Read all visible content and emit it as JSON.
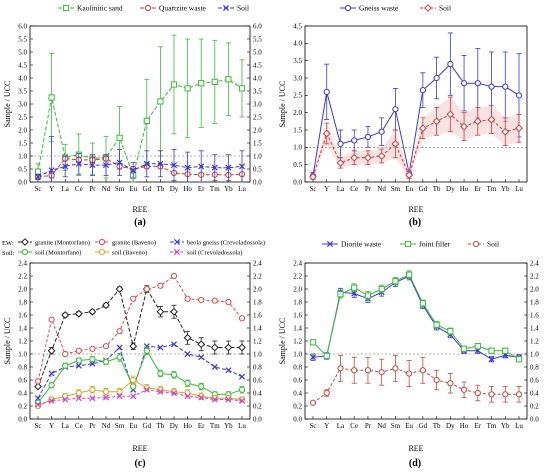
{
  "chart_data": [
    {
      "panel_label": "(a)",
      "type": "line",
      "xlabel": "REE",
      "ylabel": "Sample / UCC",
      "categories": [
        "Sc",
        "Y",
        "La",
        "Ce",
        "Pr",
        "Nd",
        "Sm",
        "Eu",
        "Gd",
        "Tb",
        "Dy",
        "Ho",
        "Er",
        "Tm",
        "Yb",
        "Lu"
      ],
      "ylim": [
        0,
        6
      ],
      "yticks": [
        0,
        0.5,
        1,
        1.5,
        2,
        2.5,
        3,
        3.5,
        4,
        4.5,
        5,
        5.5,
        6
      ],
      "ytick_labels": [
        "0.0",
        "0.5",
        "1.0",
        "1.5",
        "2.0",
        "2.5",
        "3.0",
        "3.5",
        "4.0",
        "4.5",
        "5.0",
        "5.5",
        "6.0"
      ],
      "right_axis": true,
      "reference_line": 1,
      "legend_position": "top",
      "series": [
        {
          "name": "Kaolinitic sand",
          "color": "#3cb93c",
          "marker": "square",
          "dash": "4,2",
          "values": [
            0.4,
            3.25,
            0.95,
            1.05,
            0.9,
            0.95,
            1.7,
            0.25,
            2.35,
            3.1,
            3.75,
            3.6,
            3.8,
            3.85,
            3.95,
            3.6
          ],
          "err": [
            0.3,
            1.7,
            0.5,
            0.8,
            0.6,
            0.8,
            1.2,
            0.3,
            1.6,
            2.1,
            1.9,
            1.9,
            1.7,
            1.6,
            1.4,
            1.1
          ]
        },
        {
          "name": "Quartzite waste",
          "color": "#cc3a3a",
          "marker": "circle",
          "dash": "4,2",
          "values": [
            0.2,
            0.25,
            0.9,
            0.85,
            0.85,
            0.9,
            0.6,
            0.5,
            0.6,
            0.6,
            0.35,
            0.3,
            0.28,
            0.28,
            0.27,
            0.3
          ],
          "err": [
            0.05,
            0.1,
            0.1,
            0.1,
            0.1,
            0.1,
            0.1,
            0.1,
            0.08,
            0.08,
            0.06,
            0.05,
            0.05,
            0.05,
            0.05,
            0.05
          ]
        },
        {
          "name": "Soil",
          "color": "#3a3acc",
          "marker": "x",
          "dash": "4,2",
          "values": [
            0.2,
            0.45,
            0.6,
            0.7,
            0.65,
            0.65,
            0.75,
            0.45,
            0.7,
            0.7,
            0.65,
            0.55,
            0.6,
            0.55,
            0.55,
            0.6
          ],
          "err": [
            0.1,
            1.3,
            0.4,
            0.4,
            0.4,
            0.4,
            0.5,
            0.3,
            0.5,
            0.5,
            0.6,
            0.6,
            0.6,
            0.5,
            0.5,
            0.6
          ]
        }
      ]
    },
    {
      "panel_label": "(b)",
      "type": "line",
      "xlabel": "REE",
      "ylabel": "Sample / UCC",
      "categories": [
        "Sc",
        "Y",
        "La",
        "Ce",
        "Pr",
        "Nd",
        "Sm",
        "Eu",
        "Gd",
        "Tb",
        "Dy",
        "Ho",
        "Er",
        "Tm",
        "Yb",
        "Lu"
      ],
      "ylim": [
        0,
        4.5
      ],
      "yticks": [
        0,
        0.5,
        1,
        1.5,
        2,
        2.5,
        3,
        3.5,
        4,
        4.5
      ],
      "ytick_labels": [
        "0.0",
        "0.5",
        "1.0",
        "1.5",
        "2.0",
        "2.5",
        "3.0",
        "3.5",
        "4.0",
        "4.5"
      ],
      "right_axis": false,
      "reference_line": 1,
      "legend_position": "top",
      "series": [
        {
          "name": "Gneiss waste",
          "color": "#3a3acc",
          "marker": "circle",
          "dash": "",
          "values": [
            0.18,
            2.6,
            1.1,
            1.2,
            1.3,
            1.45,
            2.1,
            0.25,
            2.65,
            3.0,
            3.4,
            2.85,
            2.85,
            2.75,
            2.75,
            2.5
          ],
          "err": [
            0.1,
            0.8,
            0.4,
            0.3,
            0.3,
            0.4,
            0.6,
            0.1,
            0.5,
            0.6,
            0.9,
            0.8,
            1.0,
            1.0,
            1.0,
            1.2
          ]
        },
        {
          "name": "Soil",
          "color": "#cc3a3a",
          "marker": "diamond",
          "dash": "3,2",
          "values": [
            0.15,
            1.4,
            0.55,
            0.7,
            0.7,
            0.75,
            1.1,
            0.2,
            1.55,
            1.75,
            1.95,
            1.6,
            1.75,
            1.8,
            1.45,
            1.55
          ],
          "err": [
            0.05,
            0.3,
            0.15,
            0.2,
            0.2,
            0.2,
            0.4,
            0.1,
            0.3,
            0.4,
            0.5,
            0.4,
            0.4,
            0.4,
            0.4,
            0.4
          ]
        }
      ]
    },
    {
      "panel_label": "(c)",
      "type": "line",
      "xlabel": "REE",
      "ylabel": "Sample / UCC",
      "categories": [
        "Sc",
        "Y",
        "La",
        "Ce",
        "Pr",
        "Nd",
        "Sm",
        "Eu",
        "Gd",
        "Tb",
        "Dy",
        "Ho",
        "Er",
        "Tm",
        "Yb",
        "Lu"
      ],
      "ylim": [
        0,
        2.4
      ],
      "yticks": [
        0,
        0.2,
        0.4,
        0.6,
        0.8,
        1,
        1.2,
        1.4,
        1.6,
        1.8,
        2,
        2.2,
        2.4
      ],
      "ytick_labels": [
        "0.0",
        "0.2",
        "0.4",
        "0.6",
        "0.8",
        "1.0",
        "1.2",
        "1.4",
        "1.6",
        "1.8",
        "2.0",
        "2.2",
        "2.4"
      ],
      "right_axis": true,
      "reference_line": 1,
      "legend_position": "top",
      "legend_prefix_ew": "EW:",
      "legend_prefix_soil": "Soil:",
      "series": [
        {
          "name": "granite (Montorfano)",
          "color": "#222222",
          "marker": "diamond",
          "dash": "4,2",
          "values": [
            0.5,
            1.05,
            1.6,
            1.62,
            1.65,
            1.75,
            2.0,
            1.12,
            2.0,
            1.65,
            1.65,
            1.25,
            1.15,
            1.1,
            1.1,
            1.1
          ],
          "err": [
            0.02,
            0.05,
            0.03,
            0.03,
            0.03,
            0.03,
            0.03,
            0.05,
            0.05,
            0.08,
            0.1,
            0.1,
            0.1,
            0.1,
            0.1,
            0.1
          ]
        },
        {
          "name": "granite (Baveno)",
          "color": "#dd4a4a",
          "marker": "circle",
          "dash": "3,2",
          "values": [
            0.58,
            1.53,
            1.0,
            1.05,
            1.08,
            1.12,
            1.35,
            1.85,
            2.0,
            2.05,
            2.2,
            1.85,
            1.83,
            1.82,
            1.8,
            1.55
          ],
          "err": [
            0,
            0,
            0,
            0,
            0,
            0,
            0,
            0,
            0,
            0,
            0,
            0,
            0,
            0,
            0,
            0
          ]
        },
        {
          "name": "beola gneiss (Crevoladossola)",
          "color": "#3a3acc",
          "marker": "x",
          "dash": "4,2",
          "values": [
            0.32,
            0.7,
            0.8,
            0.82,
            0.85,
            0.9,
            1.1,
            0.45,
            1.12,
            1.1,
            1.15,
            1.0,
            0.95,
            0.8,
            0.75,
            0.65
          ],
          "err": [
            0,
            0,
            0,
            0,
            0,
            0,
            0,
            0,
            0,
            0,
            0,
            0,
            0,
            0,
            0,
            0
          ]
        },
        {
          "name": "soil (Montorfano)",
          "color": "#3cb93c",
          "marker": "circle",
          "dash": "",
          "values": [
            0.25,
            0.52,
            0.82,
            0.9,
            0.92,
            0.88,
            0.95,
            0.5,
            1.05,
            0.7,
            0.68,
            0.55,
            0.5,
            0.38,
            0.38,
            0.45
          ],
          "err": [
            0.02,
            0.04,
            0.04,
            0.04,
            0.04,
            0.04,
            0.06,
            0.04,
            0.06,
            0.05,
            0.05,
            0.05,
            0.05,
            0.04,
            0.04,
            0.05
          ]
        },
        {
          "name": "soil (Baveno)",
          "color": "#d4a52a",
          "marker": "circle",
          "dash": "",
          "values": [
            0.2,
            0.3,
            0.35,
            0.4,
            0.45,
            0.42,
            0.42,
            0.6,
            0.48,
            0.45,
            0.42,
            0.4,
            0.35,
            0.32,
            0.32,
            0.3
          ],
          "err": [
            0.02,
            0.04,
            0.04,
            0.05,
            0.05,
            0.05,
            0.05,
            0.06,
            0.05,
            0.05,
            0.05,
            0.05,
            0.05,
            0.04,
            0.04,
            0.04
          ]
        },
        {
          "name": "soil (Crevoladossola)",
          "color": "#cc44cc",
          "marker": "x",
          "dash": "3,2",
          "values": [
            0.22,
            0.28,
            0.3,
            0.32,
            0.32,
            0.33,
            0.35,
            0.35,
            0.45,
            0.42,
            0.4,
            0.35,
            0.33,
            0.3,
            0.3,
            0.28
          ],
          "err": [
            0,
            0,
            0,
            0,
            0,
            0,
            0,
            0,
            0,
            0,
            0,
            0,
            0,
            0,
            0,
            0
          ]
        }
      ]
    },
    {
      "panel_label": "(d)",
      "type": "line",
      "xlabel": "REE",
      "ylabel": "Sample / UCC",
      "categories": [
        "Sc",
        "Y",
        "La",
        "Ce",
        "Pr",
        "Nd",
        "Sm",
        "Eu",
        "Gd",
        "Tb",
        "Dy",
        "Ho",
        "Er",
        "Tm",
        "Yb",
        "Lu"
      ],
      "ylim": [
        0,
        2.4
      ],
      "yticks": [
        0,
        0.2,
        0.4,
        0.6,
        0.8,
        1,
        1.2,
        1.4,
        1.6,
        1.8,
        2,
        2.2,
        2.4
      ],
      "ytick_labels": [
        "0.0",
        "0.2",
        "0.4",
        "0.6",
        "0.8",
        "1.0",
        "1.2",
        "1.4",
        "1.6",
        "1.8",
        "2.0",
        "2.2",
        "2.4"
      ],
      "right_axis": true,
      "reference_line": 1,
      "legend_position": "top",
      "series": [
        {
          "name": "Diorite waste",
          "color": "#3a3acc",
          "marker": "x",
          "dash": "",
          "values": [
            0.95,
            0.97,
            1.95,
            1.93,
            1.85,
            1.95,
            2.1,
            2.2,
            1.75,
            1.42,
            1.3,
            1.05,
            1.05,
            0.92,
            0.98,
            0.95
          ],
          "err": [
            0.05,
            0.05,
            0.06,
            0.06,
            0.06,
            0.06,
            0.06,
            0.06,
            0.05,
            0.05,
            0.05,
            0.04,
            0.04,
            0.04,
            0.04,
            0.04
          ]
        },
        {
          "name": "Joint filler",
          "color": "#3cb93c",
          "marker": "square",
          "dash": "",
          "values": [
            1.18,
            0.97,
            1.92,
            2.02,
            1.9,
            2.0,
            2.12,
            2.22,
            1.78,
            1.45,
            1.35,
            1.08,
            1.12,
            1.05,
            1.05,
            0.92
          ],
          "err": [
            0.04,
            0.04,
            0.06,
            0.06,
            0.06,
            0.06,
            0.06,
            0.06,
            0.05,
            0.05,
            0.05,
            0.04,
            0.04,
            0.04,
            0.04,
            0.04
          ]
        },
        {
          "name": "Soil",
          "color": "#c24a3a",
          "marker": "circle",
          "dash": "3,2",
          "values": [
            0.25,
            0.4,
            0.78,
            0.75,
            0.75,
            0.72,
            0.78,
            0.7,
            0.75,
            0.6,
            0.55,
            0.45,
            0.4,
            0.38,
            0.38,
            0.38
          ],
          "err": [
            0.02,
            0.05,
            0.2,
            0.2,
            0.2,
            0.2,
            0.2,
            0.2,
            0.2,
            0.15,
            0.15,
            0.12,
            0.12,
            0.12,
            0.12,
            0.12
          ]
        }
      ]
    }
  ]
}
